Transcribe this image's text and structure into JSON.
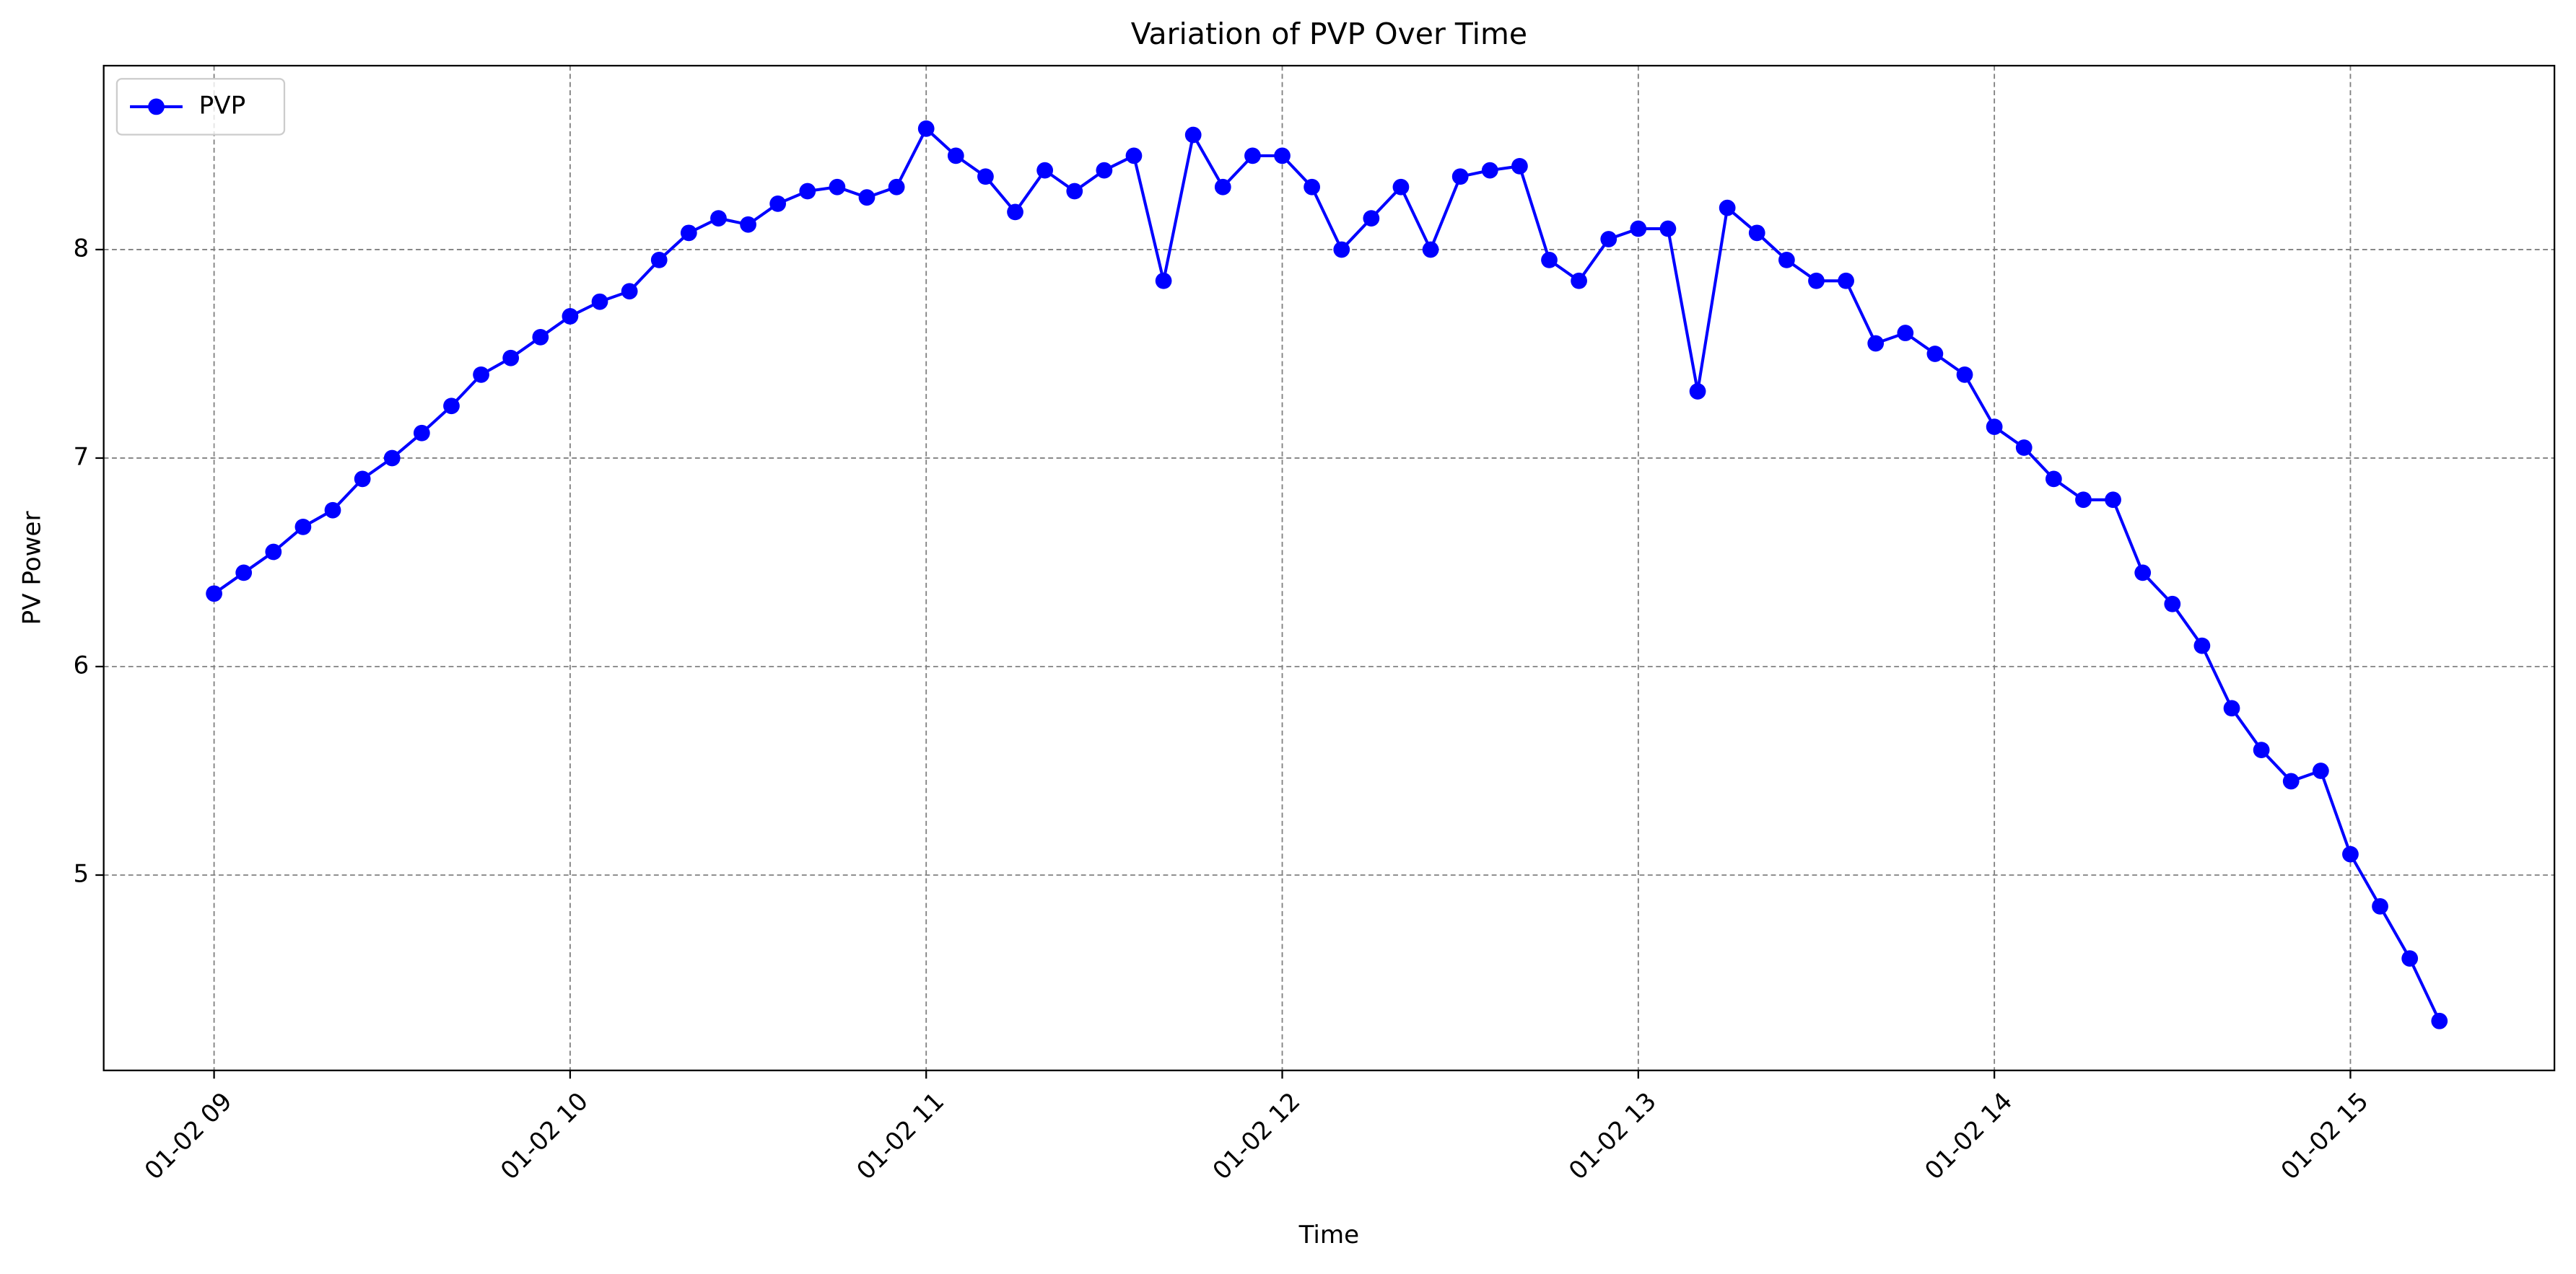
{
  "chart_data": {
    "type": "line",
    "title": "Variation of PVP Over Time",
    "xlabel": "Time",
    "ylabel": "PV Power",
    "x": [
      9.0,
      9.0833,
      9.1667,
      9.25,
      9.3333,
      9.4167,
      9.5,
      9.5833,
      9.6667,
      9.75,
      9.8333,
      9.9167,
      10.0,
      10.0833,
      10.1667,
      10.25,
      10.3333,
      10.4167,
      10.5,
      10.5833,
      10.6667,
      10.75,
      10.8333,
      10.9167,
      11.0,
      11.0833,
      11.1667,
      11.25,
      11.3333,
      11.4167,
      11.5,
      11.5833,
      11.6667,
      11.75,
      11.8333,
      11.9167,
      12.0,
      12.0833,
      12.1667,
      12.25,
      12.3333,
      12.4167,
      12.5,
      12.5833,
      12.6667,
      12.75,
      12.8333,
      12.9167,
      13.0,
      13.0833,
      13.1667,
      13.25,
      13.3333,
      13.4167,
      13.5,
      13.5833,
      13.6667,
      13.75,
      13.8333,
      13.9167,
      14.0,
      14.0833,
      14.1667,
      14.25,
      14.3333,
      14.4167,
      14.5,
      14.5833,
      14.6667,
      14.75,
      14.8333,
      14.9167,
      15.0,
      15.0833,
      15.1667,
      15.25
    ],
    "series": [
      {
        "name": "PVP",
        "color": "#0000ff",
        "values": [
          6.35,
          6.45,
          6.55,
          6.67,
          6.75,
          6.9,
          7.0,
          7.12,
          7.25,
          7.4,
          7.48,
          7.58,
          7.68,
          7.75,
          7.8,
          7.95,
          8.08,
          8.15,
          8.12,
          8.22,
          8.28,
          8.3,
          8.25,
          8.3,
          8.58,
          8.45,
          8.35,
          8.18,
          8.38,
          8.28,
          8.38,
          8.45,
          7.85,
          8.55,
          8.3,
          8.45,
          8.45,
          8.3,
          8.0,
          8.15,
          8.3,
          8.0,
          8.35,
          8.38,
          8.4,
          7.95,
          7.85,
          8.05,
          8.1,
          8.1,
          7.32,
          8.2,
          8.08,
          7.95,
          7.85,
          7.85,
          7.55,
          7.6,
          7.5,
          7.4,
          7.15,
          7.05,
          6.9,
          6.8,
          6.8,
          6.45,
          6.3,
          6.1,
          5.8,
          5.6,
          5.45,
          5.5,
          5.1,
          4.85,
          4.6,
          4.3
        ]
      }
    ],
    "xlim": [
      8.69,
      15.573
    ],
    "ylim": [
      4.063,
      8.882
    ],
    "xticks": [
      {
        "value": 9,
        "label": "01-02 09"
      },
      {
        "value": 10,
        "label": "01-02 10"
      },
      {
        "value": 11,
        "label": "01-02 11"
      },
      {
        "value": 12,
        "label": "01-02 12"
      },
      {
        "value": 13,
        "label": "01-02 13"
      },
      {
        "value": 14,
        "label": "01-02 14"
      },
      {
        "value": 15,
        "label": "01-02 15"
      }
    ],
    "yticks": [
      5,
      6,
      7,
      8
    ],
    "grid": true,
    "legend": "upper left"
  }
}
